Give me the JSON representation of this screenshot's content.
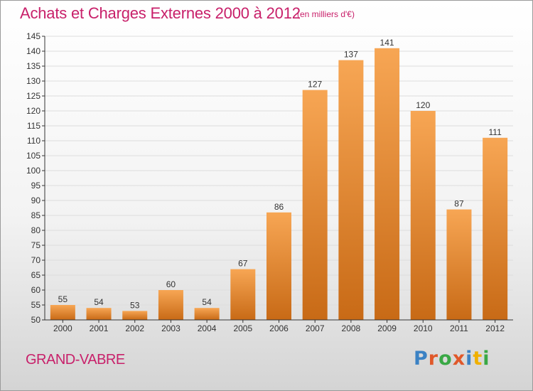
{
  "header": {
    "title": "Achats et Charges Externes 2000 à 2012",
    "subtitle": "(en milliers d'€)"
  },
  "footer": {
    "commune": "GRAND-VABRE",
    "logo_letters": [
      "P",
      "r",
      "o",
      "x",
      "i",
      "t",
      "i"
    ],
    "logo_colors": [
      "#3b82c4",
      "#e0582a",
      "#39a845",
      "#e0582a",
      "#3b82c4",
      "#f0b000",
      "#39a845"
    ]
  },
  "colors": {
    "bar_top": "#f7a654",
    "bar_bottom": "#c86a16",
    "grid": "#dddddd",
    "accent": "#c8206a"
  },
  "chart_data": {
    "type": "bar",
    "categories": [
      "2000",
      "2001",
      "2002",
      "2003",
      "2004",
      "2005",
      "2006",
      "2007",
      "2008",
      "2009",
      "2010",
      "2011",
      "2012"
    ],
    "values": [
      55,
      54,
      53,
      60,
      54,
      67,
      86,
      127,
      137,
      141,
      120,
      87,
      111
    ],
    "ylim": [
      50,
      145
    ],
    "yticks": [
      50,
      55,
      60,
      65,
      70,
      75,
      80,
      85,
      90,
      95,
      100,
      105,
      110,
      115,
      120,
      125,
      130,
      135,
      140,
      145
    ],
    "grid": true,
    "xlabel": "",
    "ylabel": ""
  }
}
